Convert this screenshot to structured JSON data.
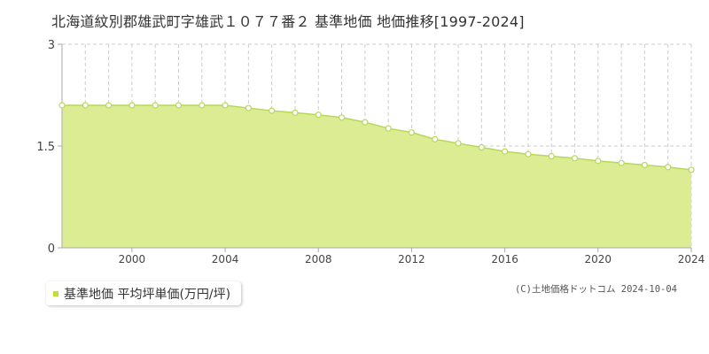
{
  "title": "北海道紋別郡雄武町字雄武１０７７番２ 基準地価 地価推移[1997-2024]",
  "legend": {
    "label": "基準地価 平均坪単価(万円/坪)"
  },
  "copyright": "(C)土地価格ドットコム 2024-10-04",
  "colors": {
    "fill": "#dcec93",
    "line": "#b6d85a",
    "point_stroke": "#b6d85a",
    "point_fill": "#ffffff",
    "grid": "#cccccc",
    "axis": "#aaaaaa",
    "legend_swatch": "#bfe030"
  },
  "chart_data": {
    "type": "area",
    "title": "北海道紋別郡雄武町字雄武１０７７番２ 基準地価 地価推移[1997-2024]",
    "xlabel": "",
    "ylabel": "",
    "xlim": [
      1997,
      2024
    ],
    "ylim": [
      0,
      3
    ],
    "x_ticks": [
      2000,
      2004,
      2008,
      2012,
      2016,
      2020,
      2024
    ],
    "y_ticks": [
      {
        "value": 0,
        "label": "0"
      },
      {
        "value": 1.5,
        "label": "1.5"
      },
      {
        "value": 3,
        "label": "3"
      }
    ],
    "grid": true,
    "legend_position": "bottom-left",
    "series": [
      {
        "name": "基準地価 平均坪単価(万円/坪)",
        "x": [
          1997,
          1998,
          1999,
          2000,
          2001,
          2002,
          2003,
          2004,
          2005,
          2006,
          2007,
          2008,
          2009,
          2010,
          2011,
          2012,
          2013,
          2014,
          2015,
          2016,
          2017,
          2018,
          2019,
          2020,
          2021,
          2022,
          2023,
          2024
        ],
        "values": [
          2.1,
          2.1,
          2.1,
          2.1,
          2.1,
          2.1,
          2.1,
          2.1,
          2.06,
          2.02,
          1.99,
          1.96,
          1.92,
          1.85,
          1.76,
          1.7,
          1.6,
          1.54,
          1.48,
          1.42,
          1.38,
          1.35,
          1.32,
          1.28,
          1.25,
          1.22,
          1.19,
          1.15
        ]
      }
    ]
  }
}
